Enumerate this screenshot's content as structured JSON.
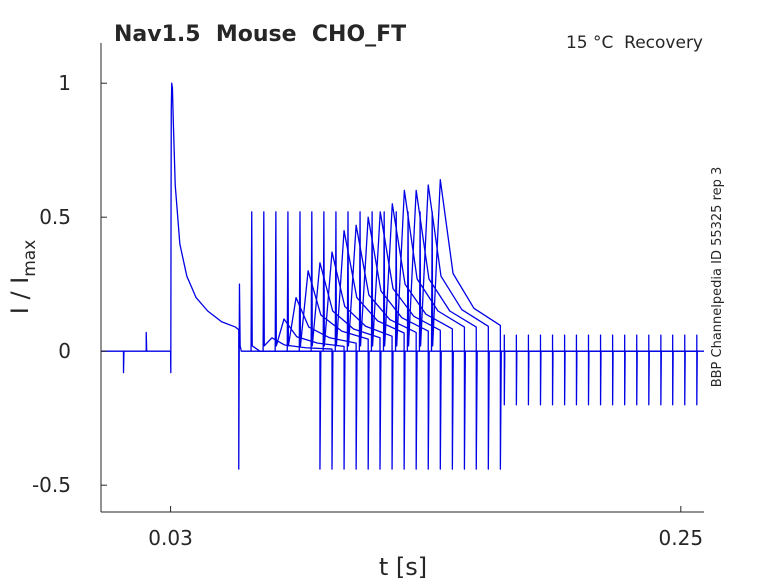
{
  "chart_data": {
    "type": "line",
    "title": "Nav1.5  Mouse  CHO_FT",
    "annotation": "15 °C  Recovery",
    "side_note": "BBP Channelpedia ID 55325 rep 3",
    "xlabel": "t [s]",
    "ylabel": "I / I",
    "ylabel_sub": "max",
    "color": "#0000e6",
    "xlim": [
      0,
      0.26
    ],
    "xticks": [
      0.03,
      0.25
    ],
    "ylim": [
      -0.6,
      1.15
    ],
    "yticks": [
      -0.5,
      0,
      0.5,
      1
    ],
    "series": [
      {
        "x": [
          0,
          0.0097,
          0.0097,
          0.0099,
          0.0195,
          0.0195,
          0.0197,
          0.03,
          0.0301,
          0.0302,
          0.0303,
          0.0305,
          0.0308,
          0.0312,
          0.032,
          0.034,
          0.037,
          0.041,
          0.046,
          0.052,
          0.058,
          0.0594,
          0.0594,
          0.0597,
          0.06,
          0.0605,
          0.1,
          0.2,
          0.26
        ],
        "values": [
          0,
          0,
          -0.08,
          0,
          0,
          0.07,
          0,
          0,
          -0.08,
          0.52,
          0.9,
          1.0,
          0.98,
          0.85,
          0.62,
          0.4,
          0.28,
          0.2,
          0.15,
          0.11,
          0.09,
          0.08,
          -0.44,
          0.25,
          0.02,
          0,
          0,
          0,
          0
        ]
      },
      {
        "x": [
          0.0647,
          0.065,
          0.0652,
          0.0685,
          0.074,
          0.083,
          0.0944,
          0.0944,
          0.0948
        ],
        "values": [
          0,
          0.52,
          0.02,
          0,
          0,
          0,
          0,
          -0.44,
          0
        ]
      },
      {
        "x": [
          0.0699,
          0.0702,
          0.0704,
          0.0737,
          0.0792,
          0.0882,
          0.0996,
          0.0996,
          0.1
        ],
        "values": [
          0,
          0.52,
          0.02,
          0.05,
          0.023,
          0.013,
          0.008,
          -0.44,
          0
        ]
      },
      {
        "x": [
          0.0751,
          0.0754,
          0.0756,
          0.0789,
          0.0844,
          0.0934,
          0.1048,
          0.1048,
          0.1052
        ],
        "values": [
          0,
          0.52,
          0.02,
          0.12,
          0.054,
          0.03,
          0.018,
          -0.44,
          0
        ]
      },
      {
        "x": [
          0.0803,
          0.0806,
          0.0808,
          0.0841,
          0.0896,
          0.0986,
          0.11,
          0.11,
          0.1104
        ],
        "values": [
          0,
          0.52,
          0.02,
          0.2,
          0.09,
          0.05,
          0.03,
          -0.44,
          0
        ]
      },
      {
        "x": [
          0.0855,
          0.0858,
          0.086,
          0.0893,
          0.0948,
          0.1038,
          0.1152,
          0.1152,
          0.1156
        ],
        "values": [
          0,
          0.52,
          0.02,
          0.3,
          0.135,
          0.075,
          0.045,
          -0.44,
          0
        ]
      },
      {
        "x": [
          0.0906,
          0.0909,
          0.0911,
          0.0944,
          0.0999,
          0.1089,
          0.1203,
          0.1203,
          0.1207
        ],
        "values": [
          0,
          0.52,
          0.02,
          0.33,
          0.15,
          0.083,
          0.05,
          -0.44,
          0
        ]
      },
      {
        "x": [
          0.0958,
          0.0961,
          0.0963,
          0.0996,
          0.1051,
          0.1141,
          0.1255,
          0.1255,
          0.1259
        ],
        "values": [
          0,
          0.52,
          0.02,
          0.37,
          0.167,
          0.093,
          0.056,
          -0.44,
          0
        ]
      },
      {
        "x": [
          0.101,
          0.1013,
          0.1015,
          0.1048,
          0.1103,
          0.1193,
          0.1307,
          0.1307,
          0.1311
        ],
        "values": [
          0,
          0.52,
          0.02,
          0.45,
          0.2,
          0.113,
          0.068,
          -0.44,
          0
        ]
      },
      {
        "x": [
          0.1062,
          0.1065,
          0.1067,
          0.11,
          0.1155,
          0.1245,
          0.1359,
          0.1359,
          0.1363
        ],
        "values": [
          0,
          0.52,
          0.02,
          0.47,
          0.21,
          0.118,
          0.07,
          -0.44,
          0
        ]
      },
      {
        "x": [
          0.1114,
          0.1117,
          0.1119,
          0.1152,
          0.1207,
          0.1297,
          0.1411,
          0.1411,
          0.1415
        ],
        "values": [
          0,
          0.52,
          0.02,
          0.5,
          0.225,
          0.125,
          0.075,
          -0.44,
          0
        ]
      },
      {
        "x": [
          0.1166,
          0.1169,
          0.1171,
          0.1204,
          0.1259,
          0.1349,
          0.1463,
          0.1463,
          0.1467
        ],
        "values": [
          0,
          0.52,
          0.02,
          0.52,
          0.234,
          0.13,
          0.078,
          -0.44,
          0
        ]
      },
      {
        "x": [
          0.1218,
          0.1221,
          0.1223,
          0.1256,
          0.1311,
          0.1401,
          0.1515,
          0.1515,
          0.1519
        ],
        "values": [
          0,
          0.52,
          0.02,
          0.55,
          0.25,
          0.138,
          0.083,
          -0.44,
          0
        ]
      },
      {
        "x": [
          0.127,
          0.1273,
          0.1275,
          0.1308,
          0.1363,
          0.1453,
          0.1567,
          0.1567,
          0.1571
        ],
        "values": [
          0,
          0.52,
          0.02,
          0.6,
          0.27,
          0.15,
          0.09,
          -0.44,
          0
        ]
      },
      {
        "x": [
          0.1321,
          0.1324,
          0.1326,
          0.1359,
          0.1414,
          0.1504,
          0.1618,
          0.1618,
          0.1622
        ],
        "values": [
          0,
          0.52,
          0.02,
          0.6,
          0.27,
          0.15,
          0.09,
          -0.44,
          0
        ]
      },
      {
        "x": [
          0.1373,
          0.1376,
          0.1378,
          0.1411,
          0.1466,
          0.1556,
          0.167,
          0.167,
          0.1674
        ],
        "values": [
          0,
          0.52,
          0.02,
          0.62,
          0.28,
          0.155,
          0.093,
          -0.44,
          0
        ]
      },
      {
        "x": [
          0.1425,
          0.1428,
          0.143,
          0.1463,
          0.1518,
          0.1608,
          0.1722,
          0.1722,
          0.1726
        ],
        "values": [
          0,
          0.52,
          0.02,
          0.64,
          0.29,
          0.16,
          0.096,
          -0.44,
          0
        ]
      },
      {
        "x": [
          0.1739,
          0.1739,
          0.1739,
          0.1741,
          0.1791,
          0.1791,
          0.1791,
          0.1793,
          0.1843,
          0.1843,
          0.1843,
          0.1845,
          0.1895,
          0.1895,
          0.1895,
          0.1897,
          0.1947,
          0.1947,
          0.1947,
          0.1949,
          0.1999,
          0.1999,
          0.1999,
          0.2001,
          0.205,
          0.205,
          0.205,
          0.2052,
          0.2102,
          0.2102,
          0.2102,
          0.2104,
          0.2154,
          0.2154,
          0.2154,
          0.2156,
          0.2206,
          0.2206,
          0.2206,
          0.2208,
          0.2258,
          0.2258,
          0.2258,
          0.226,
          0.231,
          0.231,
          0.231,
          0.2312,
          0.2362,
          0.2362,
          0.2362,
          0.2364,
          0.2414,
          0.2414,
          0.2414,
          0.2416,
          0.2465,
          0.2465,
          0.2465,
          0.2467,
          0.2517,
          0.2517,
          0.2517,
          0.2519,
          0.2569,
          0.2569,
          0.2569,
          0.2571
        ],
        "values": [
          0,
          0.06,
          -0.2,
          0,
          0,
          0.06,
          -0.2,
          0,
          0,
          0.06,
          -0.2,
          0,
          0,
          0.06,
          -0.2,
          0,
          0,
          0.06,
          -0.2,
          0,
          0,
          0.06,
          -0.2,
          0,
          0,
          0.06,
          -0.2,
          0,
          0,
          0.06,
          -0.2,
          0,
          0,
          0.06,
          -0.2,
          0,
          0,
          0.06,
          -0.2,
          0,
          0,
          0.06,
          -0.2,
          0,
          0,
          0.06,
          -0.2,
          0,
          0,
          0.06,
          -0.2,
          0,
          0,
          0.06,
          -0.2,
          0,
          0,
          0.06,
          -0.2,
          0,
          0,
          0.06,
          -0.2,
          0,
          0,
          0.06,
          -0.2,
          0
        ]
      }
    ]
  }
}
